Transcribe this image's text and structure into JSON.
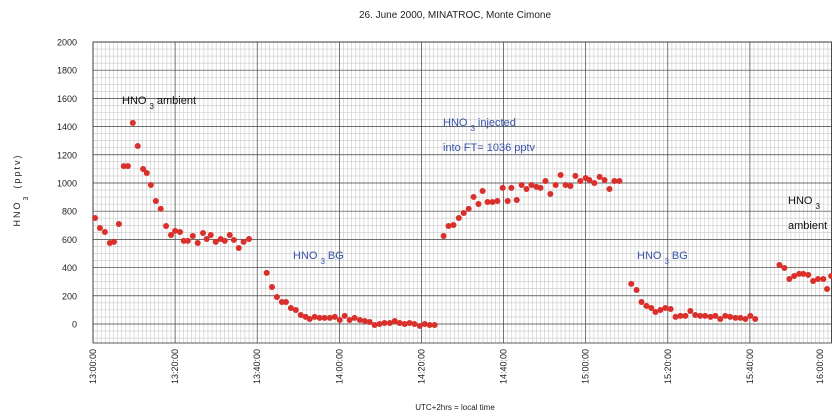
{
  "chart_data": {
    "type": "scatter",
    "title": "26. June 2000, MINATROC, Monte Cimone",
    "x_label": "UTC+2hrs = local time",
    "y_label": {
      "main": "HNO",
      "sub": "3",
      "rest": "(pptv)"
    },
    "xlim": [
      0,
      180
    ],
    "ylim": [
      -135,
      2000
    ],
    "xticks": [
      {
        "value": 0,
        "label": "13:00:00"
      },
      {
        "value": 20,
        "label": "13:20:00"
      },
      {
        "value": 40,
        "label": "13:40:00"
      },
      {
        "value": 60,
        "label": "14:00:00"
      },
      {
        "value": 80,
        "label": "14:20:00"
      },
      {
        "value": 100,
        "label": "14:40:00"
      },
      {
        "value": 120,
        "label": "15:00:00"
      },
      {
        "value": 140,
        "label": "15:20:00"
      },
      {
        "value": 160,
        "label": "15:40:00"
      },
      {
        "value": 180,
        "label": "16:00:00"
      }
    ],
    "yticks": [
      0,
      200,
      400,
      600,
      800,
      1000,
      1200,
      1400,
      1600,
      1800,
      2000
    ],
    "grid": true,
    "minor_xstep": 1,
    "minor_ystep": 50,
    "series": [
      {
        "color": "#d9302c",
        "x": [
          0.5,
          1.7,
          2.9,
          4.1,
          5.1,
          6.3,
          7.5,
          8.5,
          9.7,
          10.9,
          12.2,
          13.1,
          14.1,
          15.3,
          16.5,
          17.8,
          19.0,
          20.0,
          21.2,
          22.1,
          23.1,
          24.3,
          25.5,
          26.8,
          27.7,
          28.7,
          29.9,
          31.1,
          32.1,
          33.3,
          34.3,
          35.5,
          36.7,
          38.0,
          42.3,
          43.6,
          44.8,
          46.0,
          47.0,
          48.2,
          49.4,
          50.6,
          51.8,
          52.8,
          54.0,
          55.2,
          56.4,
          57.7,
          58.9,
          60.1,
          61.3,
          62.5,
          63.7,
          65.0,
          66.2,
          67.4,
          68.6,
          69.8,
          71.0,
          72.3,
          73.5,
          74.7,
          75.9,
          77.1,
          78.3,
          79.6,
          80.8,
          82.0,
          83.2,
          85.4,
          86.6,
          87.8,
          89.1,
          90.3,
          91.5,
          92.7,
          93.9,
          94.9,
          96.1,
          97.3,
          98.5,
          99.8,
          101.0,
          101.9,
          103.2,
          104.4,
          105.6,
          106.8,
          108.0,
          109.0,
          110.2,
          111.4,
          112.7,
          113.9,
          115.1,
          116.3,
          117.5,
          118.7,
          120.0,
          120.9,
          122.1,
          123.4,
          124.6,
          125.8,
          127.0,
          128.2,
          131.1,
          132.4,
          133.6,
          134.8,
          136.0,
          137.0,
          138.2,
          139.4,
          140.7,
          141.9,
          143.1,
          144.3,
          145.5,
          146.7,
          147.9,
          149.1,
          150.4,
          151.6,
          152.8,
          154.0,
          155.2,
          156.5,
          157.7,
          158.9,
          160.1,
          161.3,
          167.2,
          168.4,
          169.6,
          170.8,
          172.0,
          173.0,
          174.2,
          175.4,
          176.6,
          177.9,
          178.8,
          179.8
        ],
        "values": [
          752,
          681,
          652,
          574,
          582,
          709,
          1120,
          1120,
          1426,
          1262,
          1099,
          1071,
          986,
          872,
          816,
          695,
          631,
          660,
          652,
          589,
          589,
          624,
          574,
          645,
          603,
          631,
          582,
          603,
          589,
          631,
          596,
          539,
          582,
          603,
          362,
          262,
          191,
          156,
          156,
          113,
          99,
          64,
          50,
          35,
          50,
          43,
          43,
          43,
          50,
          28,
          57,
          28,
          43,
          28,
          21,
          14,
          -7,
          0,
          7,
          7,
          21,
          7,
          0,
          7,
          0,
          -14,
          0,
          -7,
          -7,
          624,
          695,
          702,
          752,
          787,
          816,
          901,
          851,
          943,
          865,
          865,
          872,
          965,
          872,
          965,
          879,
          986,
          957,
          986,
          972,
          965,
          1014,
          922,
          986,
          1057,
          986,
          979,
          1050,
          1014,
          1035,
          1021,
          1000,
          1043,
          1021,
          957,
          1014,
          1014,
          284,
          241,
          156,
          128,
          113,
          85,
          99,
          113,
          106,
          50,
          57,
          57,
          92,
          64,
          57,
          57,
          50,
          57,
          35,
          57,
          50,
          43,
          43,
          35,
          57,
          35,
          418,
          397,
          319,
          340,
          355,
          355,
          348,
          305,
          319,
          319,
          248,
          340
        ]
      }
    ],
    "annotations": [
      {
        "color": "#111111",
        "lines": [
          {
            "main": "HNO",
            "sub": "3",
            "rest": "ambient"
          }
        ]
      },
      {
        "color": "#3a56a8",
        "lines": [
          {
            "main": "HNO",
            "sub": "3",
            "rest": "BG"
          }
        ]
      },
      {
        "color": "#3a56a8",
        "lines": [
          {
            "main": "HNO",
            "sub": "3",
            "rest": "injected"
          },
          {
            "main": "into FT= 1036 pptv"
          }
        ]
      },
      {
        "color": "#3a56a8",
        "lines": [
          {
            "main": "HNO",
            "sub": "3",
            "rest": "BG"
          }
        ]
      },
      {
        "color": "#111111",
        "lines": [
          {
            "main": "HNO",
            "sub": "3"
          },
          {
            "main": "ambient"
          }
        ]
      }
    ]
  }
}
